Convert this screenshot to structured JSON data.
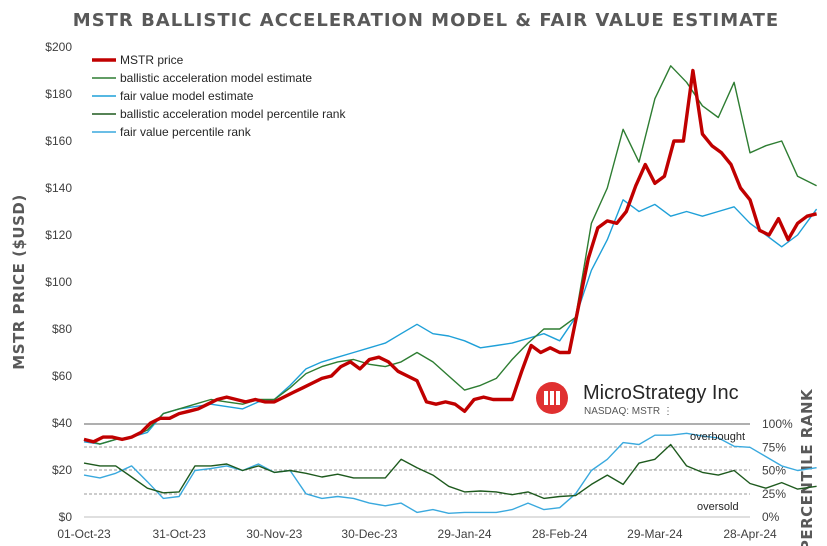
{
  "chart_data": {
    "type": "line",
    "title": "MSTR BALLISTIC ACCELERATION MODEL & FAIR VALUE ESTIMATE",
    "ylabel": "MSTR PRICE ($USD)",
    "y2label": "PERCENTILE RANK",
    "ylim": [
      0,
      200
    ],
    "y_ticks": [
      "$0",
      "$20",
      "$40",
      "$60",
      "$80",
      "$100",
      "$120",
      "$140",
      "$160",
      "$180",
      "$200"
    ],
    "y2_ticks": [
      "0%",
      "25%",
      "50%",
      "75%",
      "100%"
    ],
    "x_ticks": [
      "01-Oct-23",
      "31-Oct-23",
      "30-Nov-23",
      "30-Dec-23",
      "29-Jan-24",
      "28-Feb-24",
      "29-Mar-24",
      "28-Apr-24"
    ],
    "legend": {
      "position": "top-left",
      "items": [
        "MSTR price",
        "ballistic acceleration model estimate",
        "fair value model estimate",
        "ballistic acceleration model percentile rank",
        "fair value percentile rank"
      ]
    },
    "annotations": {
      "overbought": "overbought",
      "oversold": "oversold"
    },
    "logo": {
      "name": "MicroStrategy Inc",
      "ticker": "NASDAQ: MSTR"
    },
    "colors": {
      "price": "#c00000",
      "ballistic": "#2e7d32",
      "fair": "#1fa0d8",
      "ballistic_rank": "#1e5a1e",
      "fair_rank": "#3aa9de"
    },
    "series": [
      {
        "name": "MSTR price",
        "points": [
          [
            0,
            33
          ],
          [
            3,
            32
          ],
          [
            6,
            34
          ],
          [
            9,
            34
          ],
          [
            12,
            33
          ],
          [
            15,
            34
          ],
          [
            18,
            36
          ],
          [
            21,
            40
          ],
          [
            24,
            42
          ],
          [
            27,
            42
          ],
          [
            30,
            44
          ],
          [
            33,
            45
          ],
          [
            36,
            46
          ],
          [
            39,
            48
          ],
          [
            42,
            50
          ],
          [
            45,
            51
          ],
          [
            48,
            50
          ],
          [
            51,
            49
          ],
          [
            54,
            50
          ],
          [
            57,
            49
          ],
          [
            60,
            49
          ],
          [
            63,
            51
          ],
          [
            66,
            53
          ],
          [
            69,
            55
          ],
          [
            72,
            57
          ],
          [
            75,
            59
          ],
          [
            78,
            60
          ],
          [
            81,
            64
          ],
          [
            84,
            66
          ],
          [
            87,
            63
          ],
          [
            90,
            67
          ],
          [
            93,
            68
          ],
          [
            96,
            66
          ],
          [
            99,
            62
          ],
          [
            102,
            60
          ],
          [
            105,
            58
          ],
          [
            108,
            49
          ],
          [
            111,
            48
          ],
          [
            114,
            49
          ],
          [
            117,
            48
          ],
          [
            120,
            45
          ],
          [
            123,
            50
          ],
          [
            126,
            51
          ],
          [
            129,
            50
          ],
          [
            132,
            50
          ],
          [
            135,
            50
          ],
          [
            138,
            62
          ],
          [
            141,
            73
          ],
          [
            144,
            70
          ],
          [
            147,
            72
          ],
          [
            150,
            70
          ],
          [
            153,
            70
          ],
          [
            156,
            90
          ],
          [
            159,
            110
          ],
          [
            162,
            123
          ],
          [
            165,
            126
          ],
          [
            168,
            125
          ],
          [
            171,
            130
          ],
          [
            174,
            141
          ],
          [
            177,
            150
          ],
          [
            180,
            142
          ],
          [
            183,
            145
          ],
          [
            186,
            160
          ],
          [
            189,
            160
          ],
          [
            192,
            190
          ],
          [
            195,
            163
          ],
          [
            198,
            158
          ],
          [
            201,
            155
          ],
          [
            204,
            150
          ],
          [
            207,
            140
          ],
          [
            210,
            135
          ],
          [
            213,
            122
          ],
          [
            216,
            120
          ],
          [
            219,
            127
          ],
          [
            222,
            118
          ],
          [
            225,
            125
          ],
          [
            228,
            128
          ],
          [
            231,
            129
          ]
        ]
      },
      {
        "name": "ballistic acceleration model estimate",
        "points": [
          [
            0,
            33
          ],
          [
            5,
            31
          ],
          [
            10,
            33
          ],
          [
            15,
            34
          ],
          [
            20,
            37
          ],
          [
            25,
            44
          ],
          [
            30,
            46
          ],
          [
            35,
            48
          ],
          [
            40,
            50
          ],
          [
            45,
            49
          ],
          [
            50,
            48
          ],
          [
            55,
            50
          ],
          [
            60,
            50
          ],
          [
            65,
            55
          ],
          [
            70,
            61
          ],
          [
            75,
            64
          ],
          [
            80,
            66
          ],
          [
            85,
            67
          ],
          [
            90,
            65
          ],
          [
            95,
            64
          ],
          [
            100,
            66
          ],
          [
            105,
            70
          ],
          [
            110,
            66
          ],
          [
            115,
            60
          ],
          [
            120,
            54
          ],
          [
            125,
            56
          ],
          [
            130,
            59
          ],
          [
            135,
            67
          ],
          [
            140,
            74
          ],
          [
            145,
            80
          ],
          [
            150,
            80
          ],
          [
            155,
            85
          ],
          [
            160,
            125
          ],
          [
            165,
            140
          ],
          [
            170,
            165
          ],
          [
            175,
            151
          ],
          [
            180,
            178
          ],
          [
            185,
            192
          ],
          [
            190,
            185
          ],
          [
            195,
            175
          ],
          [
            200,
            170
          ],
          [
            205,
            185
          ],
          [
            210,
            155
          ],
          [
            215,
            158
          ],
          [
            220,
            160
          ],
          [
            225,
            145
          ],
          [
            231,
            141
          ]
        ]
      },
      {
        "name": "fair value model estimate",
        "points": [
          [
            0,
            32
          ],
          [
            5,
            31
          ],
          [
            10,
            33
          ],
          [
            15,
            34
          ],
          [
            20,
            36
          ],
          [
            25,
            44
          ],
          [
            30,
            46
          ],
          [
            35,
            47
          ],
          [
            40,
            48
          ],
          [
            45,
            47
          ],
          [
            50,
            46
          ],
          [
            55,
            49
          ],
          [
            60,
            50
          ],
          [
            65,
            56
          ],
          [
            70,
            63
          ],
          [
            75,
            66
          ],
          [
            80,
            68
          ],
          [
            85,
            70
          ],
          [
            90,
            72
          ],
          [
            95,
            74
          ],
          [
            100,
            78
          ],
          [
            105,
            82
          ],
          [
            110,
            78
          ],
          [
            115,
            77
          ],
          [
            120,
            75
          ],
          [
            125,
            72
          ],
          [
            130,
            73
          ],
          [
            135,
            74
          ],
          [
            140,
            76
          ],
          [
            145,
            78
          ],
          [
            150,
            75
          ],
          [
            155,
            85
          ],
          [
            160,
            105
          ],
          [
            165,
            118
          ],
          [
            170,
            135
          ],
          [
            175,
            130
          ],
          [
            180,
            133
          ],
          [
            185,
            128
          ],
          [
            190,
            130
          ],
          [
            195,
            128
          ],
          [
            200,
            130
          ],
          [
            205,
            132
          ],
          [
            210,
            125
          ],
          [
            215,
            120
          ],
          [
            220,
            115
          ],
          [
            225,
            120
          ],
          [
            231,
            131
          ]
        ]
      },
      {
        "name": "ballistic acceleration model percentile rank",
        "points": [
          [
            0,
            58
          ],
          [
            5,
            55
          ],
          [
            10,
            55
          ],
          [
            15,
            43
          ],
          [
            20,
            31
          ],
          [
            25,
            26
          ],
          [
            30,
            27
          ],
          [
            35,
            55
          ],
          [
            40,
            55
          ],
          [
            45,
            57
          ],
          [
            50,
            50
          ],
          [
            55,
            55
          ],
          [
            60,
            48
          ],
          [
            65,
            50
          ],
          [
            70,
            47
          ],
          [
            75,
            43
          ],
          [
            80,
            46
          ],
          [
            85,
            42
          ],
          [
            90,
            42
          ],
          [
            95,
            42
          ],
          [
            100,
            62
          ],
          [
            105,
            53
          ],
          [
            110,
            45
          ],
          [
            115,
            33
          ],
          [
            120,
            27
          ],
          [
            125,
            28
          ],
          [
            130,
            27
          ],
          [
            135,
            24
          ],
          [
            140,
            27
          ],
          [
            145,
            20
          ],
          [
            150,
            22
          ],
          [
            155,
            23
          ],
          [
            160,
            35
          ],
          [
            165,
            45
          ],
          [
            170,
            35
          ],
          [
            175,
            58
          ],
          [
            180,
            62
          ],
          [
            185,
            78
          ],
          [
            190,
            55
          ],
          [
            195,
            48
          ],
          [
            200,
            45
          ],
          [
            205,
            50
          ],
          [
            210,
            36
          ],
          [
            215,
            31
          ],
          [
            220,
            37
          ],
          [
            225,
            30
          ],
          [
            231,
            33
          ]
        ]
      },
      {
        "name": "fair value percentile rank",
        "points": [
          [
            0,
            45
          ],
          [
            5,
            42
          ],
          [
            10,
            47
          ],
          [
            15,
            55
          ],
          [
            20,
            38
          ],
          [
            25,
            20
          ],
          [
            30,
            22
          ],
          [
            35,
            50
          ],
          [
            40,
            52
          ],
          [
            45,
            55
          ],
          [
            50,
            50
          ],
          [
            55,
            57
          ],
          [
            60,
            48
          ],
          [
            65,
            50
          ],
          [
            70,
            25
          ],
          [
            75,
            20
          ],
          [
            80,
            22
          ],
          [
            85,
            20
          ],
          [
            90,
            15
          ],
          [
            95,
            12
          ],
          [
            100,
            15
          ],
          [
            105,
            5
          ],
          [
            110,
            8
          ],
          [
            115,
            4
          ],
          [
            120,
            5
          ],
          [
            125,
            5
          ],
          [
            130,
            5
          ],
          [
            135,
            8
          ],
          [
            140,
            15
          ],
          [
            145,
            8
          ],
          [
            150,
            10
          ],
          [
            155,
            25
          ],
          [
            160,
            50
          ],
          [
            165,
            62
          ],
          [
            170,
            80
          ],
          [
            175,
            78
          ],
          [
            180,
            88
          ],
          [
            185,
            88
          ],
          [
            190,
            90
          ],
          [
            195,
            87
          ],
          [
            200,
            85
          ],
          [
            205,
            76
          ],
          [
            210,
            75
          ],
          [
            215,
            65
          ],
          [
            220,
            55
          ],
          [
            225,
            50
          ],
          [
            231,
            53
          ]
        ]
      }
    ]
  }
}
